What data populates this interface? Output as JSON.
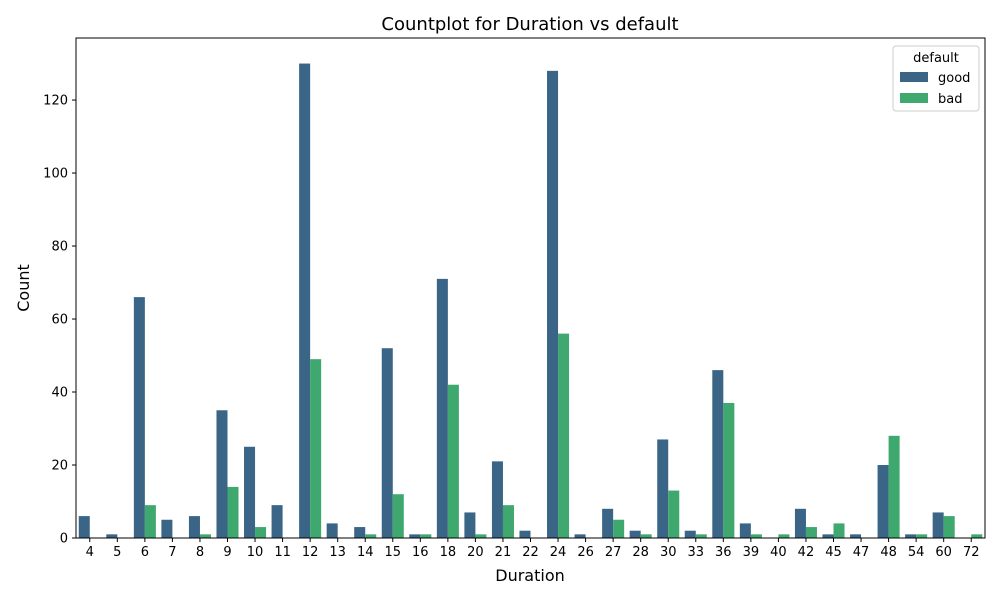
{
  "chart_data": {
    "type": "bar",
    "title": "Countplot for Duration vs default",
    "xlabel": "Duration",
    "ylabel": "Count",
    "categories": [
      "4",
      "5",
      "6",
      "7",
      "8",
      "9",
      "10",
      "11",
      "12",
      "13",
      "14",
      "15",
      "16",
      "18",
      "20",
      "21",
      "22",
      "24",
      "26",
      "27",
      "28",
      "30",
      "33",
      "36",
      "39",
      "40",
      "42",
      "45",
      "47",
      "48",
      "54",
      "60",
      "72"
    ],
    "series": [
      {
        "name": "good",
        "color": "#3a6587",
        "values": [
          6,
          1,
          66,
          5,
          6,
          35,
          25,
          9,
          130,
          4,
          3,
          52,
          1,
          71,
          7,
          21,
          2,
          128,
          1,
          8,
          2,
          27,
          2,
          46,
          4,
          0,
          8,
          1,
          1,
          20,
          1,
          7,
          0
        ]
      },
      {
        "name": "bad",
        "color": "#3fa86f",
        "values": [
          0,
          0,
          9,
          0,
          1,
          14,
          3,
          0,
          49,
          0,
          1,
          12,
          1,
          42,
          1,
          9,
          0,
          56,
          0,
          5,
          1,
          13,
          1,
          37,
          1,
          1,
          3,
          4,
          0,
          28,
          1,
          6,
          1
        ]
      }
    ],
    "ylim": [
      0,
      137
    ],
    "yticks": [
      0,
      20,
      40,
      60,
      80,
      100,
      120
    ],
    "legend": {
      "title": "default",
      "position": "upper right"
    }
  }
}
